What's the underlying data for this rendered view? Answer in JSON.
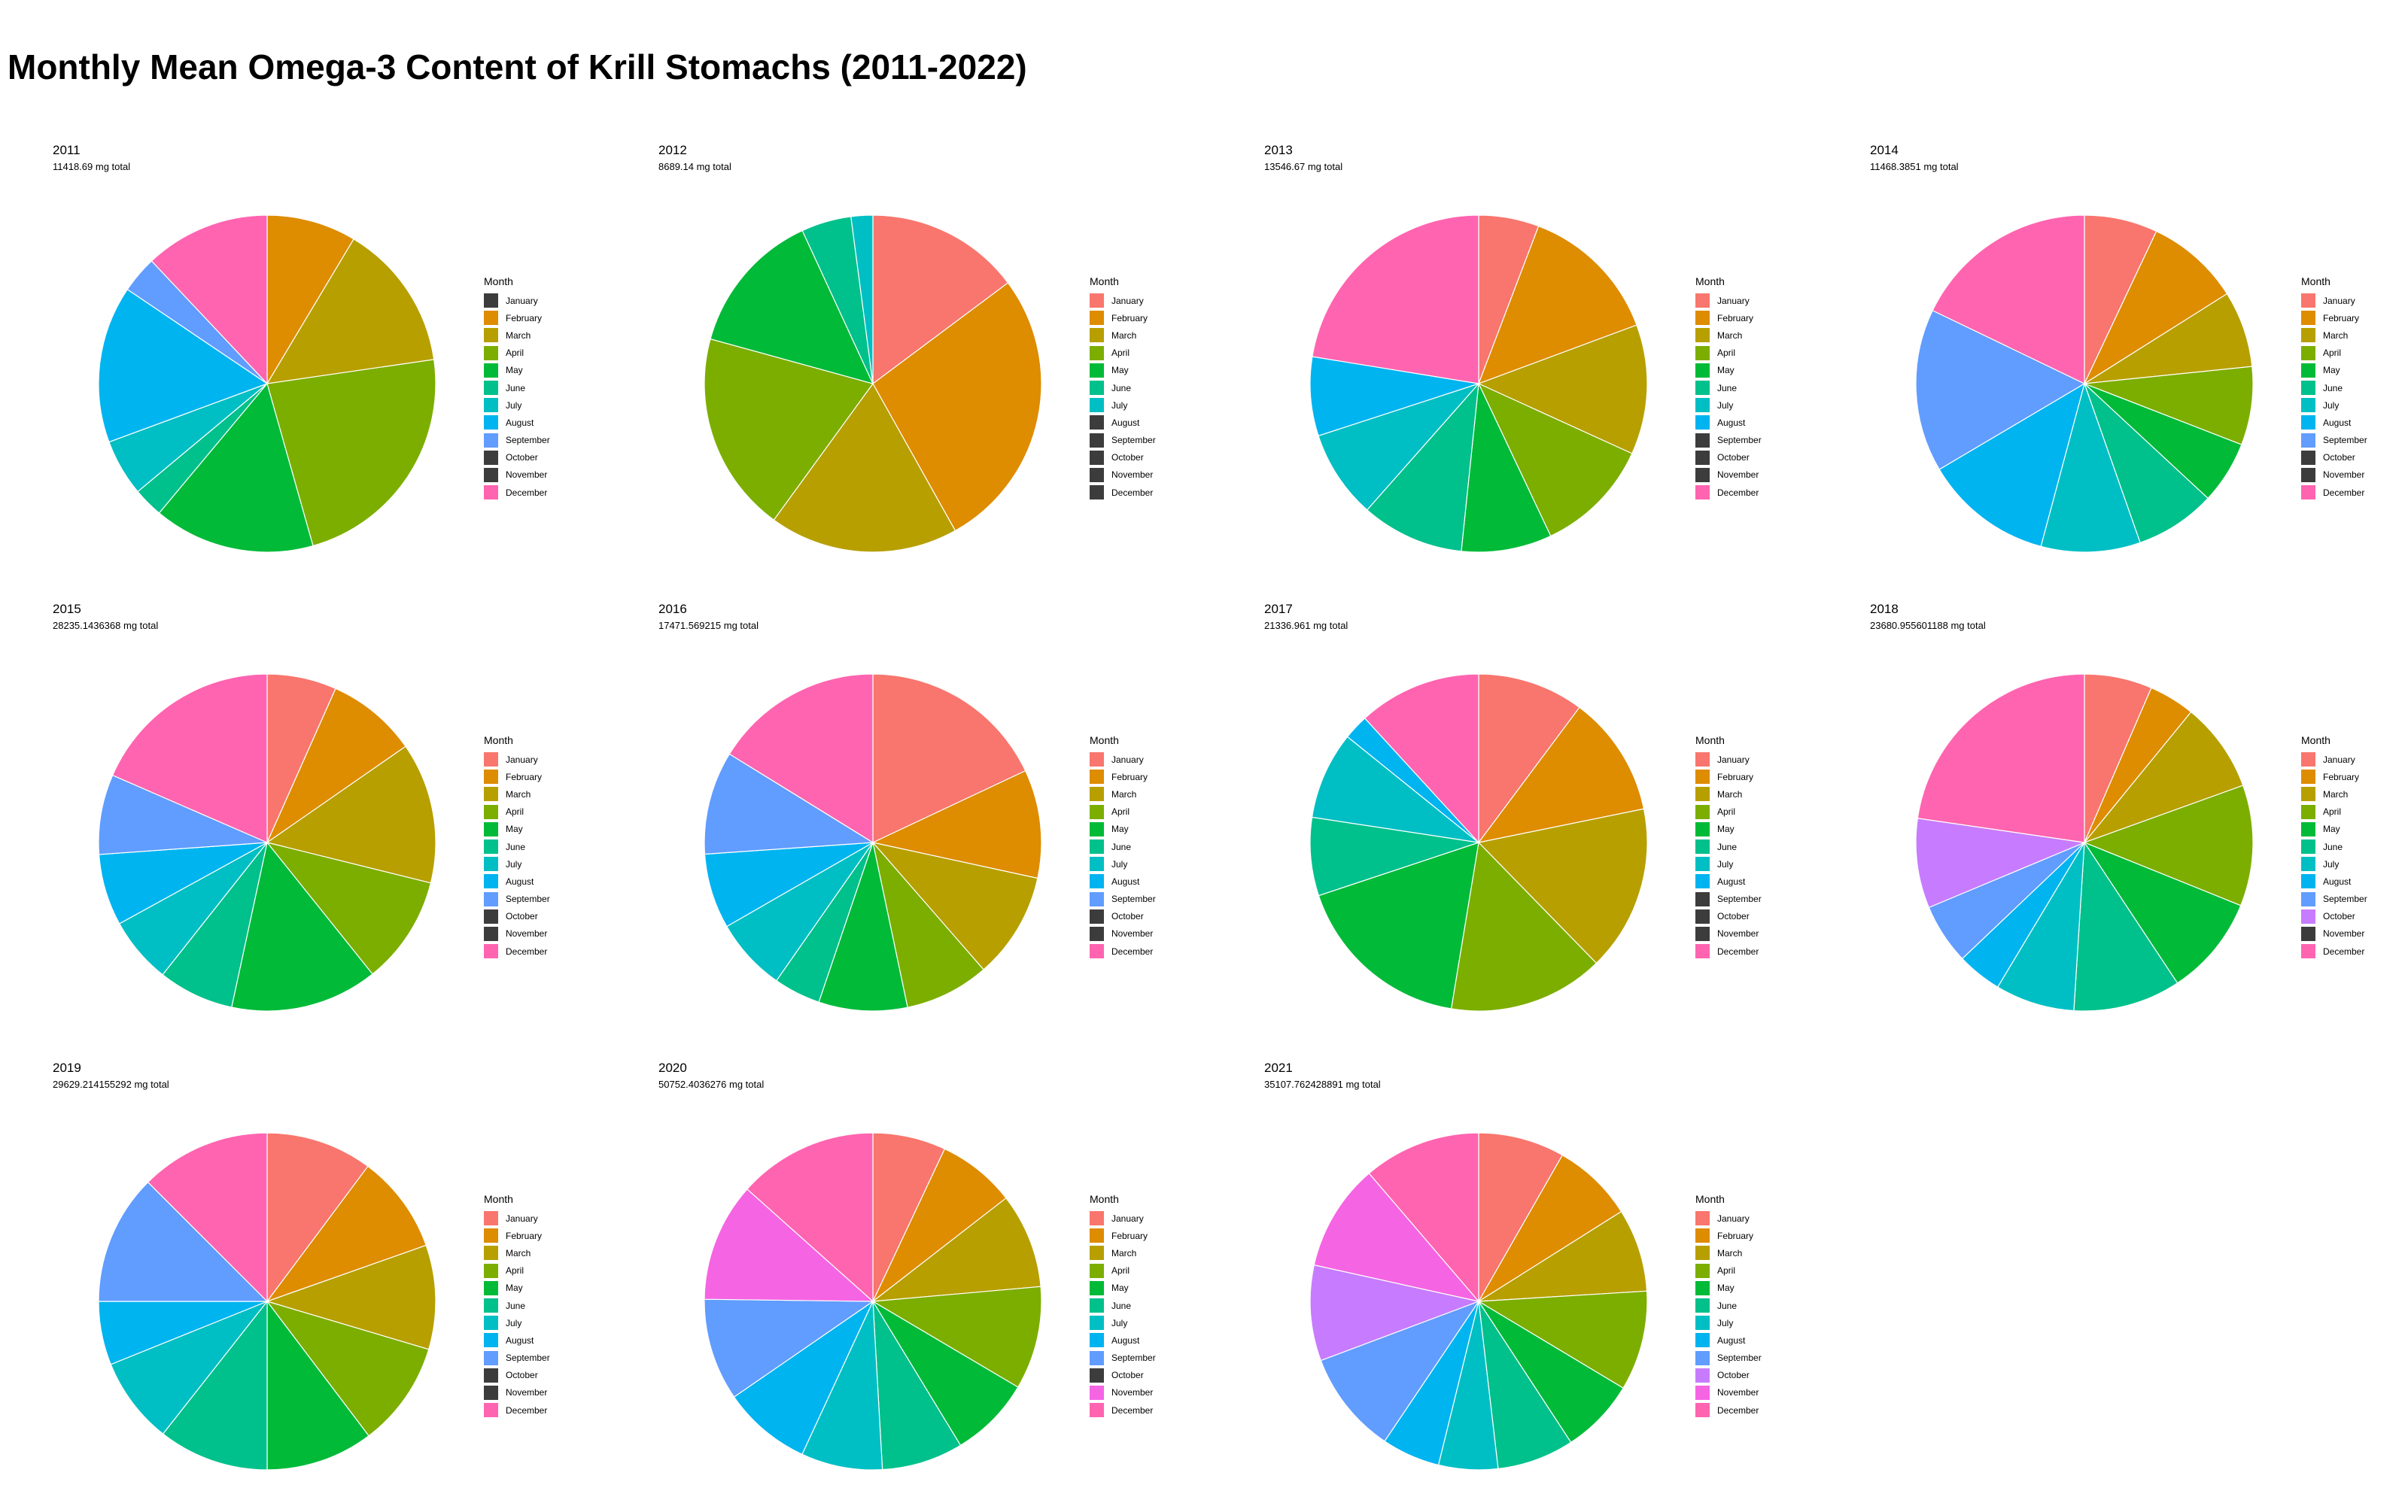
{
  "title": "Monthly Mean Omega-3 Content of Krill Stomachs (2011-2022)",
  "legend_title": "Month",
  "months": [
    "January",
    "February",
    "March",
    "April",
    "May",
    "June",
    "July",
    "August",
    "September",
    "October",
    "November",
    "December"
  ],
  "month_colors": [
    "#F8766D",
    "#DE8C00",
    "#B79F00",
    "#7CAE00",
    "#00BA38",
    "#00C08B",
    "#00BFC4",
    "#00B4F0",
    "#619CFF",
    "#C77CFF",
    "#F564E3",
    "#FF64B0"
  ],
  "missing_color": "#3C3C3C",
  "chart_data": [
    {
      "type": "pie",
      "title": "2011",
      "subtitle": "11418.69 mg total",
      "categories": [
        "January",
        "February",
        "March",
        "April",
        "May",
        "June",
        "July",
        "August",
        "September",
        "October",
        "November",
        "December"
      ],
      "values": [
        0,
        9.0,
        14.8,
        24.0,
        16.2,
        3.0,
        5.7,
        15.8,
        3.7,
        0,
        0,
        12.6
      ]
    },
    {
      "type": "pie",
      "title": "2012",
      "subtitle": "8689.14 mg total",
      "categories": [
        "January",
        "February",
        "March",
        "April",
        "May",
        "June",
        "July",
        "August",
        "September",
        "October",
        "November",
        "December"
      ],
      "values": [
        14.2,
        26.0,
        17.4,
        18.5,
        13.3,
        4.6,
        2.0,
        0,
        0,
        0,
        0,
        0
      ]
    },
    {
      "type": "pie",
      "title": "2013",
      "subtitle": "13546.67 mg total",
      "categories": [
        "January",
        "February",
        "March",
        "April",
        "May",
        "June",
        "July",
        "August",
        "September",
        "October",
        "November",
        "December"
      ],
      "values": [
        5.8,
        13.6,
        12.5,
        11.2,
        8.7,
        9.9,
        8.5,
        7.6,
        0,
        0,
        0,
        22.5
      ]
    },
    {
      "type": "pie",
      "title": "2014",
      "subtitle": "11468.3851 mg total",
      "categories": [
        "January",
        "February",
        "March",
        "April",
        "May",
        "June",
        "July",
        "August",
        "September",
        "October",
        "November",
        "December"
      ],
      "values": [
        7.0,
        9.0,
        7.3,
        7.5,
        6.0,
        7.7,
        9.5,
        12.3,
        15.6,
        0,
        0,
        17.8
      ]
    },
    {
      "type": "pie",
      "title": "2015",
      "subtitle": "28235.1436368 mg total",
      "categories": [
        "January",
        "February",
        "March",
        "April",
        "May",
        "June",
        "July",
        "August",
        "September",
        "October",
        "November",
        "December"
      ],
      "values": [
        6.6,
        8.6,
        13.4,
        10.3,
        14.0,
        7.2,
        6.3,
        6.8,
        7.6,
        0,
        0,
        18.3
      ]
    },
    {
      "type": "pie",
      "title": "2016",
      "subtitle": "17471.569215 mg total",
      "categories": [
        "January",
        "February",
        "March",
        "April",
        "May",
        "June",
        "July",
        "August",
        "September",
        "October",
        "November",
        "December"
      ],
      "values": [
        18.0,
        10.4,
        10.2,
        8.1,
        8.5,
        4.5,
        7.0,
        7.2,
        9.9,
        0,
        0,
        16.2
      ]
    },
    {
      "type": "pie",
      "title": "2017",
      "subtitle": "21336.961 mg total",
      "categories": [
        "January",
        "February",
        "March",
        "April",
        "May",
        "June",
        "July",
        "August",
        "September",
        "October",
        "November",
        "December"
      ],
      "values": [
        10.2,
        11.6,
        15.9,
        14.9,
        17.3,
        7.5,
        8.4,
        2.4,
        0,
        0,
        0,
        11.8
      ]
    },
    {
      "type": "pie",
      "title": "2018",
      "subtitle": "23680.955601188 mg total",
      "categories": [
        "January",
        "February",
        "March",
        "April",
        "May",
        "June",
        "July",
        "August",
        "September",
        "October",
        "November",
        "December"
      ],
      "values": [
        6.5,
        4.4,
        8.6,
        11.6,
        9.6,
        10.3,
        7.6,
        4.3,
        5.8,
        8.6,
        0,
        22.7
      ]
    },
    {
      "type": "pie",
      "title": "2019",
      "subtitle": "29629.214155292 mg total",
      "categories": [
        "January",
        "February",
        "March",
        "April",
        "May",
        "June",
        "July",
        "August",
        "September",
        "October",
        "November",
        "December"
      ],
      "values": [
        10.2,
        9.4,
        10.0,
        10.1,
        10.3,
        10.6,
        8.3,
        6.1,
        12.5,
        0,
        0,
        12.5
      ]
    },
    {
      "type": "pie",
      "title": "2020",
      "subtitle": "50752.4036276 mg total",
      "categories": [
        "January",
        "February",
        "March",
        "April",
        "May",
        "June",
        "July",
        "August",
        "September",
        "October",
        "November",
        "December"
      ],
      "values": [
        7.0,
        7.5,
        9.1,
        9.9,
        7.8,
        7.8,
        7.8,
        8.5,
        9.8,
        0,
        11.4,
        13.4
      ]
    },
    {
      "type": "pie",
      "title": "2021",
      "subtitle": "35107.762428891 mg total",
      "categories": [
        "January",
        "February",
        "March",
        "April",
        "May",
        "June",
        "July",
        "August",
        "September",
        "October",
        "November",
        "December"
      ],
      "values": [
        8.3,
        7.8,
        8.0,
        9.6,
        7.2,
        7.4,
        5.7,
        5.6,
        9.9,
        9.2,
        10.3,
        11.3
      ]
    }
  ]
}
